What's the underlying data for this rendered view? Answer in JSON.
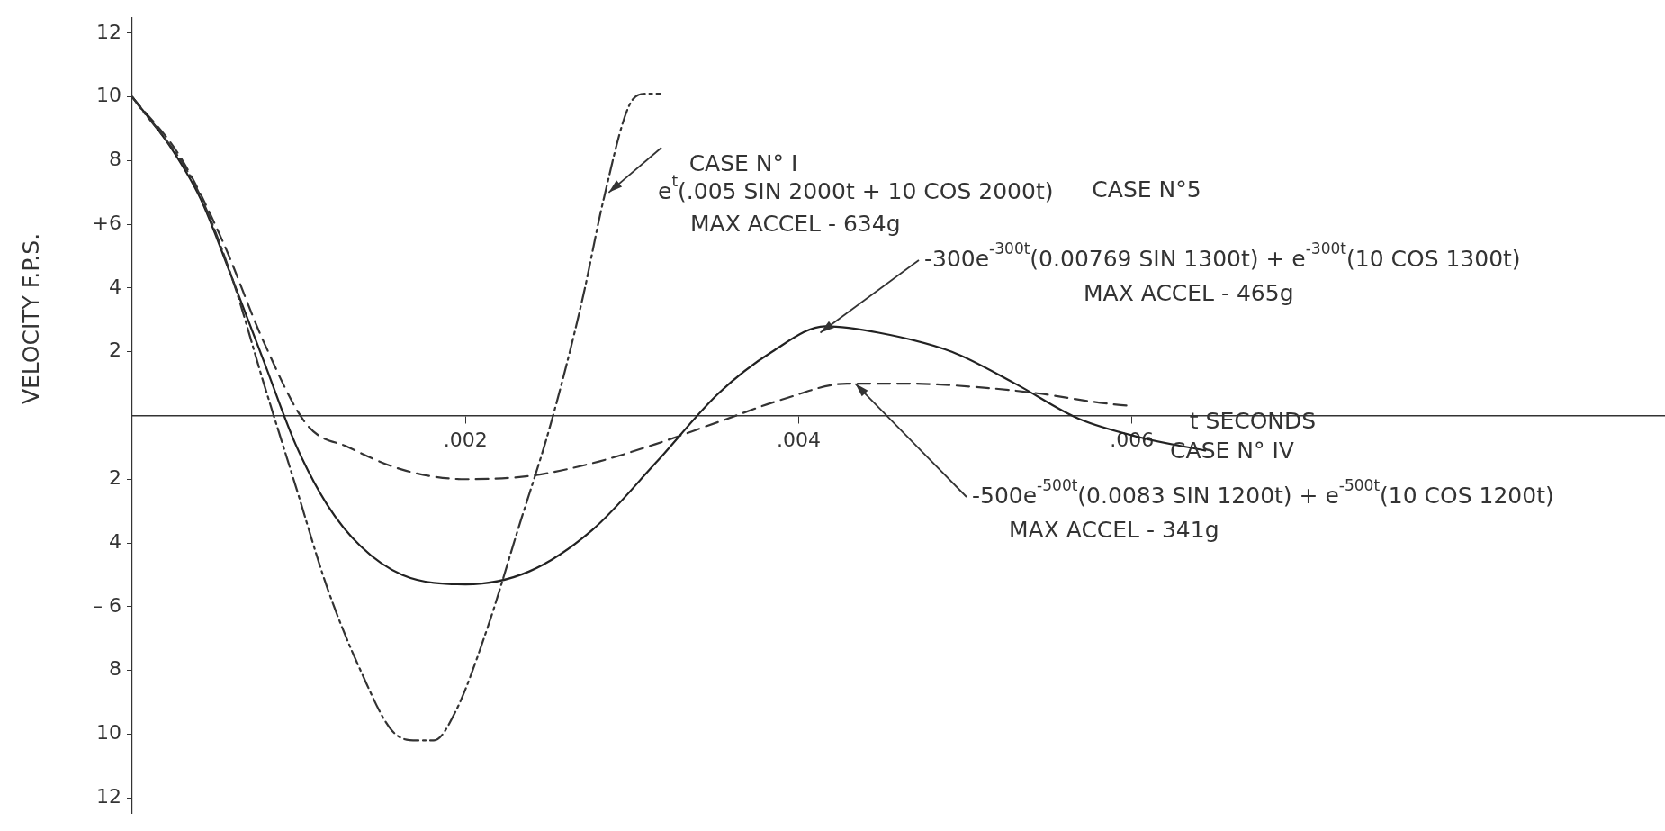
{
  "chart_data": {
    "type": "line",
    "xlabel": "t SECONDS",
    "ylabel": "VELOCITY F.P.S.",
    "xlim": [
      0,
      0.0092
    ],
    "ylim": [
      -12.5,
      12.5
    ],
    "xticks": [
      {
        "value": 0.002,
        "label": ".002"
      },
      {
        "value": 0.004,
        "label": ".004"
      },
      {
        "value": 0.006,
        "label": ".006"
      }
    ],
    "yticks": [
      12,
      10,
      8,
      {
        "value": 6,
        "label": "+6"
      },
      4,
      2,
      {
        "value": -2,
        "label": "2"
      },
      {
        "value": -4,
        "label": "4"
      },
      {
        "value": -6,
        "label": "– 6"
      },
      {
        "value": -8,
        "label": "8"
      },
      {
        "value": -10,
        "label": "10"
      },
      {
        "value": -12,
        "label": "12"
      }
    ],
    "grid": false,
    "legend": false,
    "marker": "none",
    "series": [
      {
        "color": "#333333",
        "line_style": "dashdot",
        "x": [
          0,
          0.00038,
          0.0006,
          0.00079,
          0.00098,
          0.00117,
          0.00137,
          0.00156,
          0.00171,
          0.00181,
          0.00194,
          0.00213,
          0.00232,
          0.00251,
          0.0027,
          0.00283,
          0.00298,
          0.00308,
          0.00317
        ],
        "values": [
          10,
          7.2,
          4.3,
          1.0,
          -2.2,
          -5.4,
          -8.0,
          -9.9,
          -10.2,
          -10.2,
          -9.3,
          -6.7,
          -3.5,
          -0.3,
          3.6,
          6.8,
          9.7,
          10.1,
          10.1
        ]
      },
      {
        "color": "#222222",
        "line_style": "solid",
        "x": [
          0,
          0.00022,
          0.00041,
          0.0006,
          0.00079,
          0.00098,
          0.00117,
          0.00137,
          0.00162,
          0.002,
          0.00238,
          0.00276,
          0.00314,
          0.00352,
          0.00384,
          0.00416,
          0.00448,
          0.00492,
          0.0053,
          0.00568,
          0.00606,
          0.00644
        ],
        "values": [
          10,
          8.5,
          6.8,
          4.3,
          1.7,
          -0.9,
          -2.8,
          -4.1,
          -5.0,
          -5.3,
          -4.9,
          -3.6,
          -1.5,
          0.7,
          2.0,
          2.8,
          2.6,
          2.0,
          1.0,
          -0.1,
          -0.7,
          -1.1
        ]
      },
      {
        "color": "#333333",
        "line_style": "dashed",
        "x": [
          0,
          0.00029,
          0.00054,
          0.00079,
          0.00105,
          0.0013,
          0.00162,
          0.002,
          0.00238,
          0.00276,
          0.00314,
          0.00352,
          0.0039,
          0.00429,
          0.00467,
          0.00505,
          0.00543,
          0.00581,
          0.00599
        ],
        "values": [
          10,
          8.1,
          5.5,
          2.3,
          -0.3,
          -1.0,
          -1.7,
          -2.0,
          -1.9,
          -1.5,
          -0.9,
          -0.2,
          0.5,
          1.0,
          1.0,
          0.9,
          0.7,
          0.4,
          0.3
        ]
      }
    ],
    "annotations": [
      "CASE N° I",
      {
        "text": "e$^{t}$(.005 SIN 2000t + 10 COS 2000t)",
        "x": 0.00286,
        "y": 7.0
      },
      "MAX ACCEL - 634g",
      "CASE N°5",
      {
        "text": "-300e$^{-300t}$(0.00769 SIN 1300t) + e$^{-300t}$(10 COS 1300t)",
        "x": 0.00413,
        "y": 2.6
      },
      "MAX ACCEL - 465g",
      "CASE N° IV",
      {
        "text": "-500e$^{-500t}$(0.0083 SIN 1200t) + e$^{-500t}$(10 COS 1200t)",
        "x": 0.00434,
        "y": 1.0
      },
      "MAX ACCEL - 341g"
    ]
  }
}
